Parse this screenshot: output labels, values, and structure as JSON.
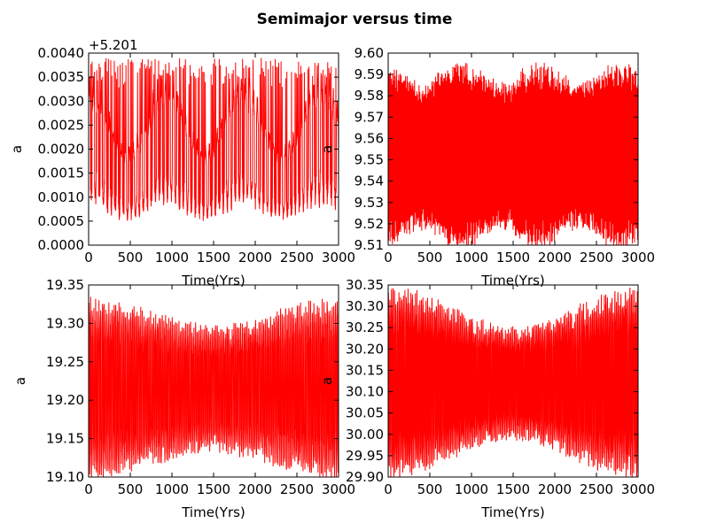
{
  "figure": {
    "title": "Semimajor versus time"
  },
  "chart_data": [
    {
      "type": "line",
      "xlabel": "Time(Yrs)",
      "ylabel": "a",
      "offset_label": "+5.201",
      "xlim": [
        0,
        3000
      ],
      "ylim": [
        0.0,
        0.004
      ],
      "xticks": [
        "0",
        "500",
        "1000",
        "1500",
        "2000",
        "2500",
        "3000"
      ],
      "yticks": [
        "0.0000",
        "0.0005",
        "0.0010",
        "0.0015",
        "0.0020",
        "0.0025",
        "0.0030",
        "0.0035",
        "0.0040"
      ],
      "series": [
        {
          "color": "#ff0000",
          "signal": {
            "mean": 0.00175,
            "slow_period": 930,
            "slow_phase": 0,
            "slow_amp": 0.00045,
            "fast_period": 48,
            "fast_amp_min": 0.0007,
            "fast_amp_max": 0.00125,
            "spike_max": 0.0039,
            "samples": 1500
          }
        }
      ]
    },
    {
      "type": "line",
      "xlabel": "Time(Yrs)",
      "ylabel": "a",
      "xlim": [
        0,
        3000
      ],
      "ylim": [
        9.51,
        9.6
      ],
      "xticks": [
        "0",
        "500",
        "1000",
        "1500",
        "2000",
        "2500",
        "3000"
      ],
      "yticks": [
        "9.51",
        "9.52",
        "9.53",
        "9.54",
        "9.55",
        "9.56",
        "9.57",
        "9.58",
        "9.59",
        "9.60"
      ],
      "series": [
        {
          "color": "#ff0000",
          "signal": {
            "mean": 9.552,
            "slow_period": 950,
            "slow_phase": 0.5,
            "slow_amp": 0.0,
            "fast_period": 9,
            "fast_amp_min": 0.031,
            "fast_amp_max": 0.039,
            "samples": 2400
          }
        }
      ]
    },
    {
      "type": "line",
      "xlabel": "Time(Yrs)",
      "ylabel": "a",
      "xlim": [
        0,
        3000
      ],
      "ylim": [
        19.1,
        19.35
      ],
      "xticks": [
        "0",
        "500",
        "1000",
        "1500",
        "2000",
        "2500",
        "3000"
      ],
      "yticks": [
        "19.10",
        "19.15",
        "19.20",
        "19.25",
        "19.30",
        "19.35"
      ],
      "series": [
        {
          "color": "#ff0000",
          "signal": {
            "mean": 19.215,
            "slow_period": 3000,
            "slow_phase": 0,
            "slow_amp": 0.0,
            "fast_period": 20,
            "fast_amp_min": 0.075,
            "fast_amp_max": 0.105,
            "samples": 2000
          }
        }
      ]
    },
    {
      "type": "line",
      "xlabel": "Time(Yrs)",
      "ylabel": "a",
      "xlim": [
        0,
        3000
      ],
      "ylim": [
        29.9,
        30.35
      ],
      "xticks": [
        "0",
        "500",
        "1000",
        "1500",
        "2000",
        "2500",
        "3000"
      ],
      "yticks": [
        "29.90",
        "29.95",
        "30.00",
        "30.05",
        "30.10",
        "30.15",
        "30.20",
        "30.25",
        "30.30",
        "30.35"
      ],
      "series": [
        {
          "color": "#ff0000",
          "signal": {
            "mean": 30.12,
            "slow_period": 3000,
            "slow_phase": 0,
            "slow_amp": 0.0,
            "fast_period": 18,
            "fast_amp_min": 0.12,
            "fast_amp_max": 0.2,
            "samples": 2000
          }
        }
      ]
    }
  ]
}
